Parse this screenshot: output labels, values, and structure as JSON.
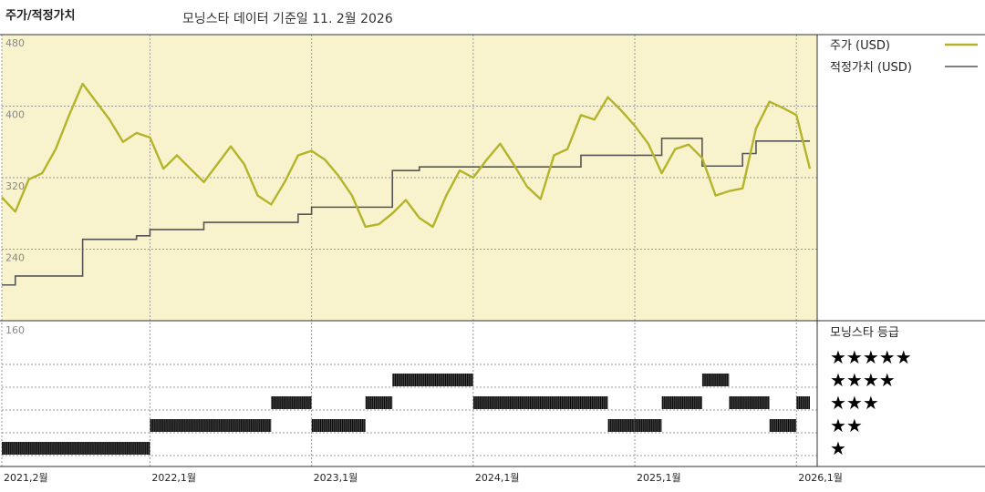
{
  "header": {
    "title": "주가/적정가치",
    "subtitle": "모닝스타 데이터 기준일 11. 2월 2026"
  },
  "colors": {
    "price_bg": "#f8f3cd",
    "price_line": "#b4b42a",
    "fair_value_line": "#555555",
    "grid": "#9a9a9a",
    "rating_bar": "#222222"
  },
  "chart_data": {
    "type": "line",
    "ylim": [
      160,
      480
    ],
    "y_ticks": [
      "480",
      "400",
      "320",
      "240",
      "160"
    ],
    "x_ticks": [
      "2021,2월",
      "2022,1월",
      "2023,1월",
      "2024,1월",
      "2025,1월",
      "2026,1월"
    ],
    "x_tick_dates": [
      "2021-02",
      "2022-01",
      "2023-01",
      "2024-01",
      "2025-01",
      "2026-01"
    ],
    "x_range": [
      "2021-02",
      "2026-02"
    ],
    "grid": true,
    "legend": {
      "position": "right"
    },
    "series": [
      {
        "name": "주가 (USD)",
        "points": [
          [
            "2021-02",
            298
          ],
          [
            "2021-03",
            282
          ],
          [
            "2021-04",
            318
          ],
          [
            "2021-05",
            325
          ],
          [
            "2021-06",
            352
          ],
          [
            "2021-07",
            390
          ],
          [
            "2021-08",
            425
          ],
          [
            "2021-09",
            405
          ],
          [
            "2021-10",
            385
          ],
          [
            "2021-11",
            360
          ],
          [
            "2021-12",
            370
          ],
          [
            "2022-01",
            365
          ],
          [
            "2022-02",
            330
          ],
          [
            "2022-03",
            345
          ],
          [
            "2022-04",
            330
          ],
          [
            "2022-05",
            315
          ],
          [
            "2022-06",
            335
          ],
          [
            "2022-07",
            355
          ],
          [
            "2022-08",
            335
          ],
          [
            "2022-09",
            300
          ],
          [
            "2022-10",
            290
          ],
          [
            "2022-11",
            315
          ],
          [
            "2022-12",
            345
          ],
          [
            "2023-01",
            350
          ],
          [
            "2023-02",
            340
          ],
          [
            "2023-03",
            322
          ],
          [
            "2023-04",
            300
          ],
          [
            "2023-05",
            265
          ],
          [
            "2023-06",
            268
          ],
          [
            "2023-07",
            280
          ],
          [
            "2023-08",
            295
          ],
          [
            "2023-09",
            275
          ],
          [
            "2023-10",
            265
          ],
          [
            "2023-11",
            300
          ],
          [
            "2023-12",
            328
          ],
          [
            "2024-01",
            320
          ],
          [
            "2024-02",
            340
          ],
          [
            "2024-03",
            358
          ],
          [
            "2024-04",
            335
          ],
          [
            "2024-05",
            310
          ],
          [
            "2024-06",
            296
          ],
          [
            "2024-07",
            345
          ],
          [
            "2024-08",
            352
          ],
          [
            "2024-09",
            390
          ],
          [
            "2024-10",
            385
          ],
          [
            "2024-11",
            410
          ],
          [
            "2024-12",
            395
          ],
          [
            "2025-01",
            378
          ],
          [
            "2025-02",
            358
          ],
          [
            "2025-03",
            325
          ],
          [
            "2025-04",
            352
          ],
          [
            "2025-05",
            357
          ],
          [
            "2025-06",
            342
          ],
          [
            "2025-07",
            300
          ],
          [
            "2025-08",
            305
          ],
          [
            "2025-09",
            308
          ],
          [
            "2025-10",
            375
          ],
          [
            "2025-11",
            405
          ],
          [
            "2025-12",
            398
          ],
          [
            "2026-01",
            390
          ],
          [
            "2026-02",
            330
          ]
        ]
      },
      {
        "name": "적정가치 (USD)",
        "step": true,
        "points": [
          [
            "2021-02",
            200
          ],
          [
            "2021-03",
            210
          ],
          [
            "2021-08",
            251
          ],
          [
            "2021-12",
            255
          ],
          [
            "2022-01",
            262
          ],
          [
            "2022-05",
            270
          ],
          [
            "2022-12",
            279
          ],
          [
            "2023-01",
            287
          ],
          [
            "2023-07",
            328
          ],
          [
            "2023-09",
            332
          ],
          [
            "2024-09",
            345
          ],
          [
            "2025-03",
            364
          ],
          [
            "2025-06",
            333
          ],
          [
            "2025-09",
            347
          ],
          [
            "2025-10",
            361
          ],
          [
            "2026-02",
            361
          ]
        ]
      }
    ],
    "rating": {
      "label": "모닝스타 등급",
      "levels": [
        "★★★★★",
        "★★★★",
        "★★★",
        "★★",
        "★"
      ],
      "segments": [
        [
          "2021-02",
          "2022-01",
          1
        ],
        [
          "2022-01",
          "2022-10",
          2
        ],
        [
          "2022-10",
          "2023-01",
          3
        ],
        [
          "2023-01",
          "2023-05",
          2
        ],
        [
          "2023-05",
          "2023-07",
          3
        ],
        [
          "2023-07",
          "2024-01",
          4
        ],
        [
          "2024-01",
          "2024-11",
          3
        ],
        [
          "2024-11",
          "2025-01",
          2
        ],
        [
          "2025-01",
          "2025-03",
          2
        ],
        [
          "2025-03",
          "2025-06",
          3
        ],
        [
          "2025-06",
          "2025-08",
          4
        ],
        [
          "2025-08",
          "2025-11",
          3
        ],
        [
          "2025-11",
          "2026-01",
          2
        ],
        [
          "2026-01",
          "2026-02",
          3
        ]
      ]
    }
  }
}
